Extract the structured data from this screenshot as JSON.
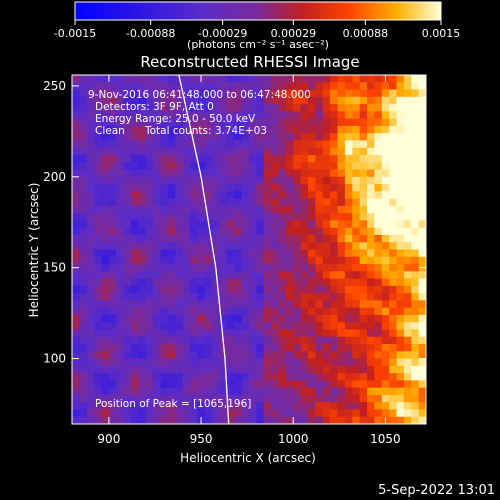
{
  "chart_data": {
    "type": "heatmap",
    "title": "Reconstructed RHESSI Image",
    "xlabel": "Heliocentric X (arcsec)",
    "ylabel": "Heliocentric Y (arcsec)",
    "xlim": [
      880,
      1072
    ],
    "ylim": [
      64,
      256
    ],
    "x_ticks": [
      900,
      950,
      1000,
      1050
    ],
    "y_ticks": [
      100,
      150,
      200,
      250
    ],
    "colorbar": {
      "range": [
        -0.0015,
        0.0015
      ],
      "ticks": [
        "-0.0015",
        "-0.00088",
        "-0.00029",
        "0.00029",
        "0.00088",
        "0.0015"
      ],
      "tick_values": [
        -0.0015,
        -0.00088,
        -0.00029,
        0.00029,
        0.00088,
        0.0015
      ],
      "unit_label": "(photons cm⁻² s⁻¹ asec⁻²)"
    },
    "annotations": [
      "9-Nov-2016 06:41:48.000 to 06:47:48.000",
      "Detectors: 3F 9F, Att 0",
      "Energy Range: 25.0 - 50.0 keV",
      "Clean",
      "Total counts: 3.74E+03"
    ],
    "peak_label": "Position of Peak = [1065,196]",
    "peak": [
      1065,
      196
    ],
    "limb": [
      [
        938,
        256
      ],
      [
        950,
        200
      ],
      [
        958,
        150
      ],
      [
        963,
        100
      ],
      [
        965,
        64
      ]
    ]
  },
  "footer": {
    "timestamp": "5-Sep-2022 13:01"
  }
}
